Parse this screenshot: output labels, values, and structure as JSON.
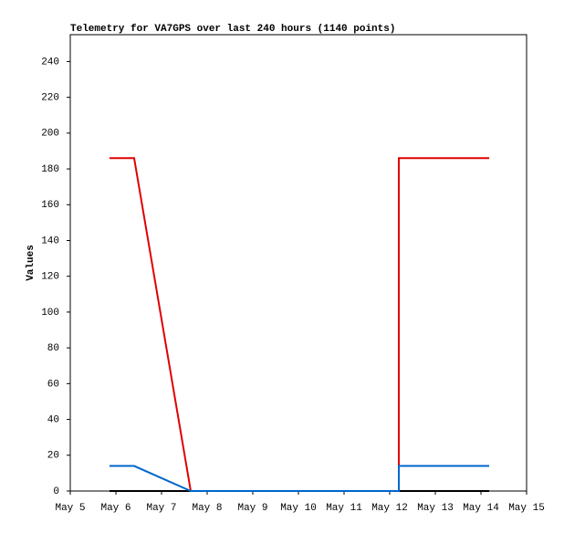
{
  "chart_data": {
    "type": "line",
    "title": "Telemetry for VA7GPS over last 240 hours (1140 points)",
    "y_label": "Values",
    "xlim": [
      5,
      15
    ],
    "ylim": [
      0,
      255
    ],
    "xticks": [
      {
        "value": 5,
        "label": "May 5"
      },
      {
        "value": 6,
        "label": "May 6"
      },
      {
        "value": 7,
        "label": "May 7"
      },
      {
        "value": 8,
        "label": "May 8"
      },
      {
        "value": 9,
        "label": "May 9"
      },
      {
        "value": 10,
        "label": "May 10"
      },
      {
        "value": 11,
        "label": "May 11"
      },
      {
        "value": 12,
        "label": "May 12"
      },
      {
        "value": 13,
        "label": "May 13"
      },
      {
        "value": 14,
        "label": "May 14"
      },
      {
        "value": 15,
        "label": "May 15"
      }
    ],
    "yticks": [
      0,
      20,
      40,
      60,
      80,
      100,
      120,
      140,
      160,
      180,
      200,
      220,
      240
    ],
    "series": [
      {
        "color": "#000000",
        "x": [
          5.86,
          14.18
        ],
        "values": [
          0,
          0
        ]
      },
      {
        "color": "#e00000",
        "x": [
          5.86,
          6.4,
          7.64,
          12.2,
          12.2,
          14.18
        ],
        "values": [
          186,
          186,
          0,
          0,
          186,
          186
        ]
      },
      {
        "color": "#0066cc",
        "x": [
          5.86,
          6.4,
          7.64,
          12.2,
          12.2,
          14.18
        ],
        "values": [
          14,
          14,
          0,
          0,
          14,
          14
        ]
      }
    ]
  }
}
